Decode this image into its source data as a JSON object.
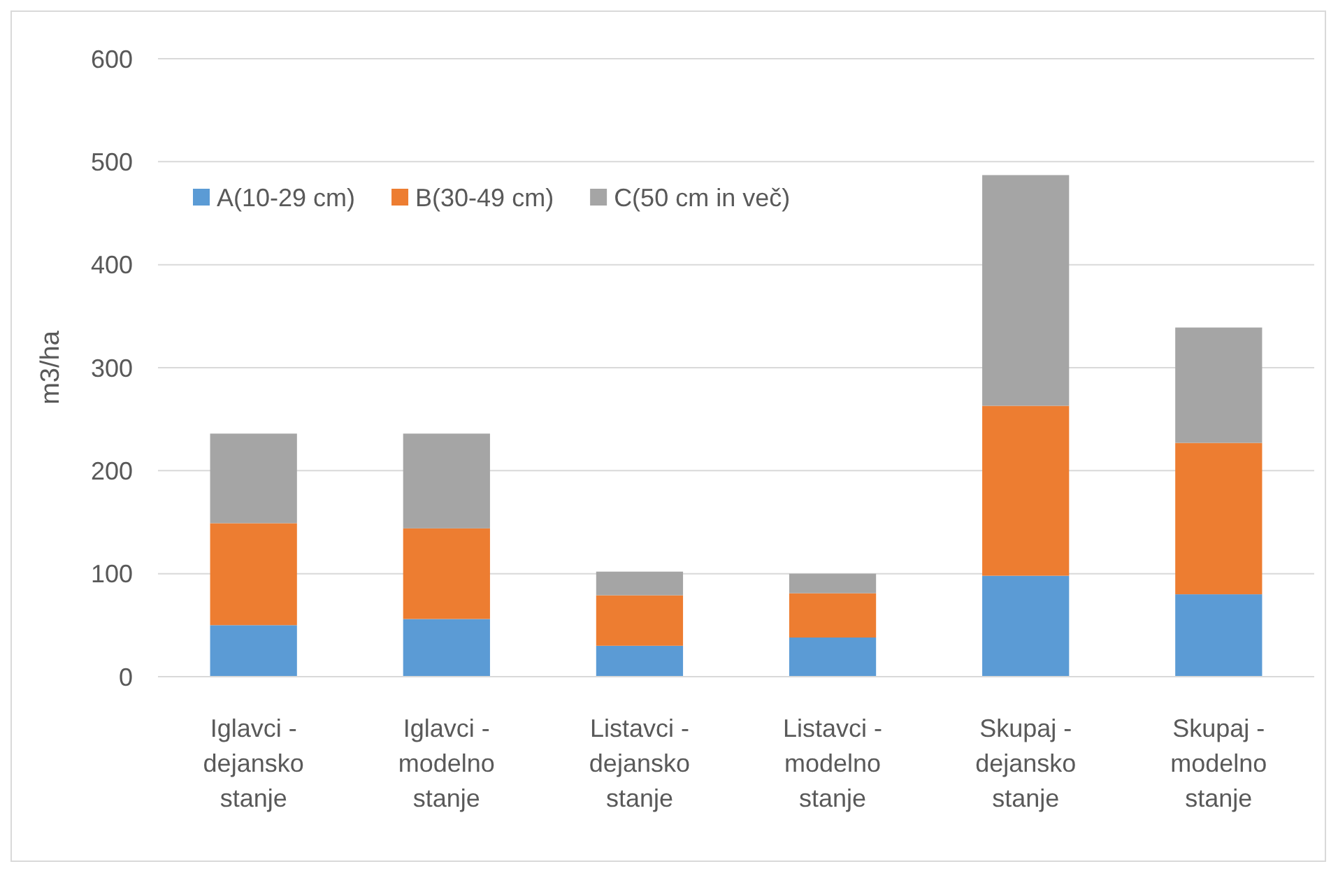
{
  "chart_data": {
    "type": "bar",
    "stacked": true,
    "ylabel": "m3/ha",
    "categories": [
      "Iglavci - dejansko stanje",
      "Iglavci - modelno stanje",
      "Listavci - dejansko stanje",
      "Listavci - modelno stanje",
      "Skupaj - dejansko stanje",
      "Skupaj - modelno stanje"
    ],
    "series": [
      {
        "name": "A(10-29 cm)",
        "color": "#5b9bd5",
        "values": [
          50,
          56,
          30,
          38,
          98,
          80
        ]
      },
      {
        "name": "B(30-49 cm)",
        "color": "#ed7d31",
        "values": [
          99,
          88,
          49,
          43,
          165,
          147
        ]
      },
      {
        "name": "C(50 cm in več)",
        "color": "#a5a5a5",
        "values": [
          87,
          92,
          23,
          19,
          224,
          112
        ]
      }
    ],
    "ylim": [
      0,
      600
    ],
    "yticks": [
      0,
      100,
      200,
      300,
      400,
      500,
      600
    ],
    "grid": "y",
    "legend": "top left"
  }
}
